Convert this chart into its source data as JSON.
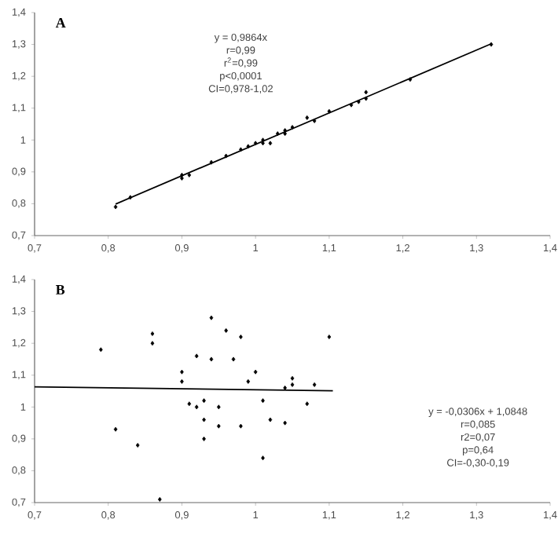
{
  "chart_data": [
    {
      "type": "scatter",
      "title": "A",
      "annotations": [
        "y = 0,9864x",
        "r=0,99",
        "r$^{2}$=0,99",
        "p<0,0001",
        "CI=0,978-1,02"
      ],
      "marker": "diamond",
      "grid": false,
      "xlim": [
        0.7,
        1.4
      ],
      "ylim": [
        0.7,
        1.4
      ],
      "xticks": [
        {
          "value": 0.7,
          "label": "0,7"
        },
        {
          "value": 0.8,
          "label": "0,8"
        },
        {
          "value": 0.9,
          "label": "0,9"
        },
        1,
        {
          "value": 1.1,
          "label": "1,1"
        },
        {
          "value": 1.2,
          "label": "1,2"
        },
        {
          "value": 1.3,
          "label": "1,3"
        },
        {
          "value": 1.4,
          "label": "1,4"
        }
      ],
      "yticks": [
        {
          "value": 0.7,
          "label": "0,7"
        },
        {
          "value": 0.8,
          "label": "0,8"
        },
        {
          "value": 0.9,
          "label": "0,9"
        },
        1,
        {
          "value": 1.1,
          "label": "1,1"
        },
        {
          "value": 1.2,
          "label": "1,2"
        },
        {
          "value": 1.3,
          "label": "1,3"
        },
        {
          "value": 1.4,
          "label": "1,4"
        }
      ],
      "series": [
        {
          "color": "#000000",
          "x": [
            0.81,
            0.83,
            0.9,
            0.9,
            0.91,
            0.94,
            0.96,
            0.98,
            0.99,
            1.0,
            1.01,
            1.01,
            1.02,
            1.03,
            1.04,
            1.04,
            1.05,
            1.07,
            1.08,
            1.1,
            1.13,
            1.14,
            1.15,
            1.15,
            1.21,
            1.32
          ],
          "values": [
            0.79,
            0.82,
            0.88,
            0.89,
            0.89,
            0.93,
            0.95,
            0.97,
            0.98,
            0.99,
            0.99,
            1.0,
            0.99,
            1.02,
            1.02,
            1.03,
            1.04,
            1.07,
            1.06,
            1.09,
            1.11,
            1.12,
            1.13,
            1.15,
            1.19,
            1.3
          ]
        },
        {
          "type": "line",
          "color": "#000000",
          "marker": "none",
          "line_style": "solid",
          "x": [
            0.81,
            1.32
          ],
          "values": [
            0.799,
            1.302
          ]
        }
      ]
    },
    {
      "type": "scatter",
      "title": "B",
      "annotations": [
        "y = -0,0306x + 1,0848",
        "r=0,085",
        "r2=0,07",
        "p=0,64",
        "CI=-0,30-0,19"
      ],
      "marker": "diamond",
      "grid": false,
      "xlim": [
        0.7,
        1.4
      ],
      "ylim": [
        0.7,
        1.4
      ],
      "xticks": [
        {
          "value": 0.7,
          "label": "0,7"
        },
        {
          "value": 0.8,
          "label": "0,8"
        },
        {
          "value": 0.9,
          "label": "0,9"
        },
        1,
        {
          "value": 1.1,
          "label": "1,1"
        },
        {
          "value": 1.2,
          "label": "1,2"
        },
        {
          "value": 1.3,
          "label": "1,3"
        },
        {
          "value": 1.4,
          "label": "1,4"
        }
      ],
      "yticks": [
        {
          "value": 0.7,
          "label": "0,7"
        },
        {
          "value": 0.8,
          "label": "0,8"
        },
        {
          "value": 0.9,
          "label": "0,9"
        },
        1,
        {
          "value": 1.1,
          "label": "1,1"
        },
        {
          "value": 1.2,
          "label": "1,2"
        },
        {
          "value": 1.3,
          "label": "1,3"
        },
        {
          "value": 1.4,
          "label": "1,4"
        }
      ],
      "series": [
        {
          "color": "#000000",
          "x": [
            0.79,
            0.81,
            0.84,
            0.86,
            0.86,
            0.87,
            0.9,
            0.9,
            0.91,
            0.92,
            0.92,
            0.93,
            0.93,
            0.93,
            0.94,
            0.94,
            0.95,
            0.95,
            0.96,
            0.97,
            0.98,
            0.98,
            0.99,
            1.0,
            1.01,
            1.01,
            1.02,
            1.04,
            1.04,
            1.05,
            1.05,
            1.07,
            1.08,
            1.1
          ],
          "values": [
            1.18,
            0.93,
            0.88,
            1.2,
            1.23,
            0.71,
            1.11,
            1.08,
            1.01,
            1.0,
            1.16,
            0.96,
            1.02,
            0.9,
            1.15,
            1.28,
            0.94,
            1.0,
            1.24,
            1.15,
            0.94,
            1.22,
            1.08,
            1.11,
            1.02,
            0.84,
            0.96,
            1.06,
            0.95,
            1.09,
            1.07,
            1.01,
            1.07,
            1.22
          ]
        },
        {
          "type": "line",
          "color": "#000000",
          "marker": "none",
          "line_style": "solid",
          "x": [
            0.7,
            1.105
          ],
          "values": [
            1.063,
            1.051
          ]
        }
      ]
    }
  ]
}
